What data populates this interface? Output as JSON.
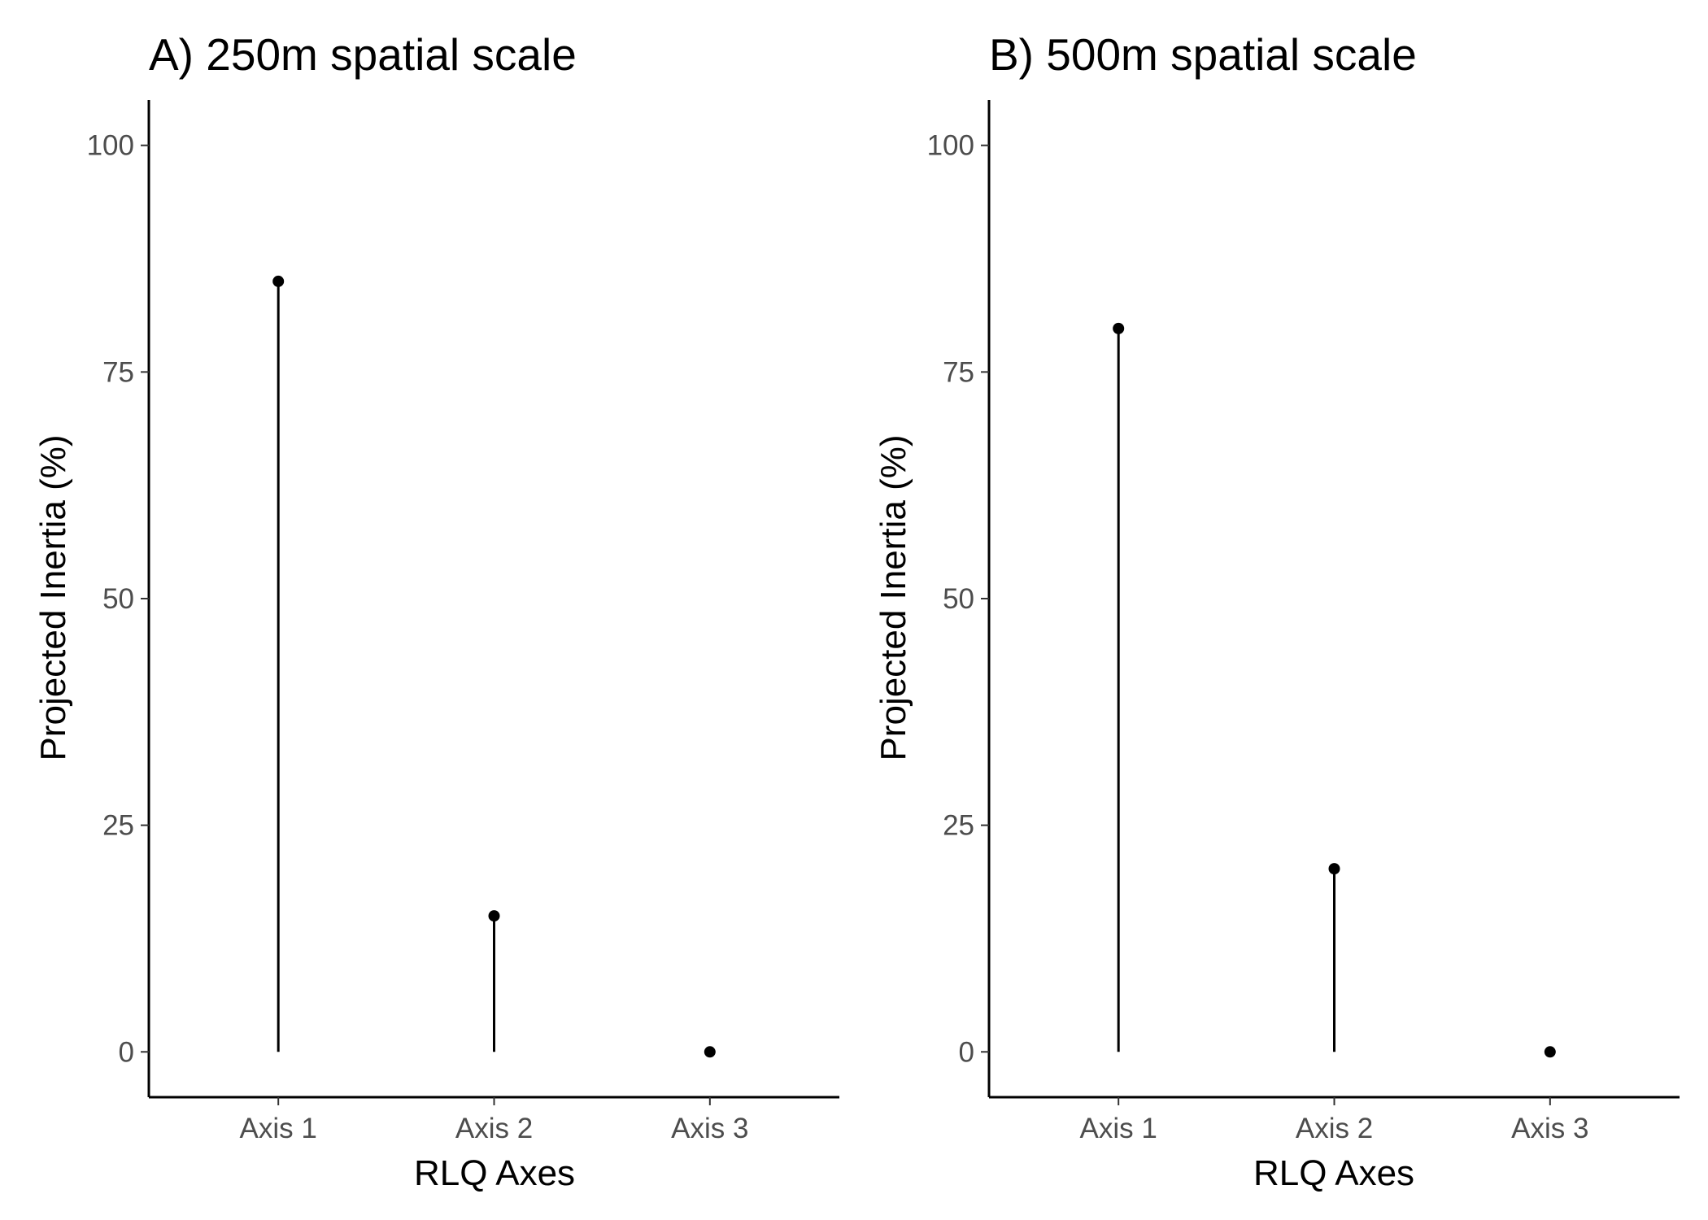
{
  "chart_data": [
    {
      "type": "lollipop",
      "title": "A) 250m spatial scale",
      "xlabel": "RLQ Axes",
      "ylabel": "Projected Inertia (%)",
      "categories": [
        "Axis 1",
        "Axis 2",
        "Axis 3"
      ],
      "values": [
        85,
        15,
        0
      ],
      "yticks": [
        0,
        25,
        50,
        75,
        100
      ],
      "ylim": [
        -5,
        105
      ],
      "grid": false,
      "color": "#000000"
    },
    {
      "type": "lollipop",
      "title": "B) 500m spatial scale",
      "xlabel": "RLQ Axes",
      "ylabel": "Projected Inertia (%)",
      "categories": [
        "Axis 1",
        "Axis 2",
        "Axis 3"
      ],
      "values": [
        79.8,
        20.2,
        0
      ],
      "yticks": [
        0,
        25,
        50,
        75,
        100
      ],
      "ylim": [
        -5,
        105
      ],
      "grid": false,
      "color": "#000000"
    }
  ]
}
